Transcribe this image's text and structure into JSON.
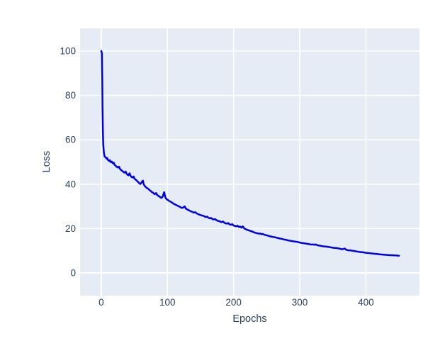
{
  "colors": {
    "page_background": "#ffffff",
    "plot_background": "#e5ecf6",
    "grid": "#ffffff",
    "text": "#2a3f5f",
    "line": "#0000e6"
  },
  "chart_data": {
    "type": "line",
    "title": "",
    "xlabel": "Epochs",
    "ylabel": "Loss",
    "xlim": [
      -32,
      481
    ],
    "ylim": [
      -10.2,
      110.2
    ],
    "xticks": [
      0,
      100,
      200,
      300,
      400
    ],
    "yticks": [
      0,
      20,
      40,
      60,
      80,
      100
    ],
    "grid": true,
    "legend": false,
    "series": [
      {
        "name": "loss",
        "color": "#0000e6",
        "points": [
          [
            0,
            100
          ],
          [
            1,
            99
          ],
          [
            1.5,
            88
          ],
          [
            2,
            74
          ],
          [
            2.5,
            64
          ],
          [
            3,
            58
          ],
          [
            4,
            54.3
          ],
          [
            5,
            52.6
          ],
          [
            6,
            52.2
          ],
          [
            7,
            52.0
          ],
          [
            8,
            51.5
          ],
          [
            9,
            51.8
          ],
          [
            10,
            51.0
          ],
          [
            11,
            50.7
          ],
          [
            12,
            50.4
          ],
          [
            13,
            50.8
          ],
          [
            14,
            50.1
          ],
          [
            15,
            49.9
          ],
          [
            16,
            50.2
          ],
          [
            17,
            49.6
          ],
          [
            18,
            49.4
          ],
          [
            19,
            49.7
          ],
          [
            20,
            48.8
          ],
          [
            21,
            48.5
          ],
          [
            22,
            48.2
          ],
          [
            23,
            48.0
          ],
          [
            24,
            47.7
          ],
          [
            25,
            47.5
          ],
          [
            26,
            47.8
          ],
          [
            27,
            47.9
          ],
          [
            28,
            47.0
          ],
          [
            29,
            46.7
          ],
          [
            30,
            46.4
          ],
          [
            31,
            46.1
          ],
          [
            32,
            45.9
          ],
          [
            33,
            45.7
          ],
          [
            34,
            45.4
          ],
          [
            35,
            45.2
          ],
          [
            36,
            45.5
          ],
          [
            37,
            45.7
          ],
          [
            38,
            44.8
          ],
          [
            39,
            44.5
          ],
          [
            40,
            44.2
          ],
          [
            41,
            44.0
          ],
          [
            42,
            44.6
          ],
          [
            43,
            44.9
          ],
          [
            44,
            43.9
          ],
          [
            45,
            43.5
          ],
          [
            46,
            43.2
          ],
          [
            47,
            43.0
          ],
          [
            48,
            43.3
          ],
          [
            49,
            43.5
          ],
          [
            50,
            42.6
          ],
          [
            51,
            42.3
          ],
          [
            52,
            42.0
          ],
          [
            53,
            41.8
          ],
          [
            54,
            41.5
          ],
          [
            55,
            41.2
          ],
          [
            56,
            40.9
          ],
          [
            57,
            40.6
          ],
          [
            58,
            40.3
          ],
          [
            59,
            40.1
          ],
          [
            60,
            40.4
          ],
          [
            61,
            40.8
          ],
          [
            62,
            41.3
          ],
          [
            63,
            41.6
          ],
          [
            64,
            40.2
          ],
          [
            65,
            39.5
          ],
          [
            66,
            39.1
          ],
          [
            67,
            38.8
          ],
          [
            68,
            38.5
          ],
          [
            69,
            38.3
          ],
          [
            70,
            38.1
          ],
          [
            71,
            37.9
          ],
          [
            72,
            37.6
          ],
          [
            73,
            37.4
          ],
          [
            74,
            37.1
          ],
          [
            75,
            36.9
          ],
          [
            76,
            36.6
          ],
          [
            77,
            36.4
          ],
          [
            78,
            36.2
          ],
          [
            79,
            36.0
          ],
          [
            80,
            35.7
          ],
          [
            81,
            35.5
          ],
          [
            82,
            35.8
          ],
          [
            83,
            36.0
          ],
          [
            84,
            35.3
          ],
          [
            85,
            35.1
          ],
          [
            86,
            34.8
          ],
          [
            87,
            34.6
          ],
          [
            88,
            34.4
          ],
          [
            89,
            34.2
          ],
          [
            90,
            34.0
          ],
          [
            91,
            33.8
          ],
          [
            92,
            34.1
          ],
          [
            93,
            34.5
          ],
          [
            94,
            35.4
          ],
          [
            95,
            36.4
          ],
          [
            96,
            35.2
          ],
          [
            97,
            34.0
          ],
          [
            98,
            33.5
          ],
          [
            99,
            33.2
          ],
          [
            100,
            33.0
          ],
          [
            102,
            32.6
          ],
          [
            104,
            32.2
          ],
          [
            106,
            31.9
          ],
          [
            108,
            31.5
          ],
          [
            110,
            31.1
          ],
          [
            112,
            30.8
          ],
          [
            114,
            30.5
          ],
          [
            116,
            30.2
          ],
          [
            118,
            29.9
          ],
          [
            120,
            29.6
          ],
          [
            122,
            29.3
          ],
          [
            124,
            29.5
          ],
          [
            126,
            30.0
          ],
          [
            128,
            29.0
          ],
          [
            130,
            28.6
          ],
          [
            132,
            28.3
          ],
          [
            134,
            28.0
          ],
          [
            136,
            27.7
          ],
          [
            138,
            27.5
          ],
          [
            140,
            27.2
          ],
          [
            142,
            27.4
          ],
          [
            144,
            26.9
          ],
          [
            146,
            26.6
          ],
          [
            148,
            26.3
          ],
          [
            150,
            26.1
          ],
          [
            152,
            25.9
          ],
          [
            154,
            25.8
          ],
          [
            156,
            25.5
          ],
          [
            158,
            25.2
          ],
          [
            160,
            25.4
          ],
          [
            162,
            24.9
          ],
          [
            164,
            24.6
          ],
          [
            166,
            24.8
          ],
          [
            168,
            24.3
          ],
          [
            170,
            24.1
          ],
          [
            172,
            24.3
          ],
          [
            174,
            23.8
          ],
          [
            176,
            23.5
          ],
          [
            178,
            23.4
          ],
          [
            180,
            23.1
          ],
          [
            182,
            22.9
          ],
          [
            184,
            23.2
          ],
          [
            186,
            22.6
          ],
          [
            188,
            22.4
          ],
          [
            190,
            22.2
          ],
          [
            192,
            22.5
          ],
          [
            194,
            21.9
          ],
          [
            196,
            21.7
          ],
          [
            198,
            22.0
          ],
          [
            200,
            21.4
          ],
          [
            202,
            21.2
          ],
          [
            204,
            21.0
          ],
          [
            206,
            21.3
          ],
          [
            208,
            20.7
          ],
          [
            210,
            20.9
          ],
          [
            212,
            20.4
          ],
          [
            214,
            21.0
          ],
          [
            216,
            20.1
          ],
          [
            218,
            19.8
          ],
          [
            220,
            19.5
          ],
          [
            222,
            19.3
          ],
          [
            224,
            19.1
          ],
          [
            226,
            18.9
          ],
          [
            228,
            18.7
          ],
          [
            230,
            18.4
          ],
          [
            232,
            18.2
          ],
          [
            234,
            18.0
          ],
          [
            236,
            17.9
          ],
          [
            238,
            17.7
          ],
          [
            240,
            17.8
          ],
          [
            242,
            17.5
          ],
          [
            244,
            17.6
          ],
          [
            246,
            17.3
          ],
          [
            248,
            17.1
          ],
          [
            250,
            17.0
          ],
          [
            252,
            16.8
          ],
          [
            254,
            16.6
          ],
          [
            256,
            16.5
          ],
          [
            258,
            16.3
          ],
          [
            260,
            16.2
          ],
          [
            262,
            16.1
          ],
          [
            264,
            16.0
          ],
          [
            266,
            15.8
          ],
          [
            268,
            15.7
          ],
          [
            270,
            15.5
          ],
          [
            272,
            15.4
          ],
          [
            274,
            15.3
          ],
          [
            276,
            15.1
          ],
          [
            278,
            15.0
          ],
          [
            280,
            14.9
          ],
          [
            282,
            14.7
          ],
          [
            284,
            14.6
          ],
          [
            286,
            14.5
          ],
          [
            288,
            14.4
          ],
          [
            290,
            14.3
          ],
          [
            292,
            14.2
          ],
          [
            294,
            14.1
          ],
          [
            296,
            14.0
          ],
          [
            298,
            13.9
          ],
          [
            300,
            13.7
          ],
          [
            302,
            13.6
          ],
          [
            304,
            13.5
          ],
          [
            306,
            13.4
          ],
          [
            308,
            13.3
          ],
          [
            310,
            13.2
          ],
          [
            312,
            13.1
          ],
          [
            314,
            13.0
          ],
          [
            316,
            12.9
          ],
          [
            318,
            12.8
          ],
          [
            320,
            12.9
          ],
          [
            322,
            12.7
          ],
          [
            324,
            12.9
          ],
          [
            326,
            12.6
          ],
          [
            328,
            12.4
          ],
          [
            330,
            12.3
          ],
          [
            332,
            12.2
          ],
          [
            334,
            12.1
          ],
          [
            336,
            12.0
          ],
          [
            338,
            11.9
          ],
          [
            340,
            11.9
          ],
          [
            342,
            11.8
          ],
          [
            344,
            11.7
          ],
          [
            346,
            11.6
          ],
          [
            348,
            11.5
          ],
          [
            350,
            11.4
          ],
          [
            352,
            11.3
          ],
          [
            354,
            11.3
          ],
          [
            356,
            11.2
          ],
          [
            358,
            11.1
          ],
          [
            360,
            11.0
          ],
          [
            362,
            10.8
          ],
          [
            364,
            10.7
          ],
          [
            366,
            10.8
          ],
          [
            368,
            11.0
          ],
          [
            370,
            10.5
          ],
          [
            372,
            10.3
          ],
          [
            374,
            10.2
          ],
          [
            376,
            10.2
          ],
          [
            378,
            10.1
          ],
          [
            380,
            10.0
          ],
          [
            382,
            9.9
          ],
          [
            384,
            9.8
          ],
          [
            386,
            9.7
          ],
          [
            388,
            9.6
          ],
          [
            390,
            9.5
          ],
          [
            392,
            9.4
          ],
          [
            394,
            9.4
          ],
          [
            396,
            9.3
          ],
          [
            398,
            9.2
          ],
          [
            400,
            9.1
          ],
          [
            402,
            9.0
          ],
          [
            404,
            9.0
          ],
          [
            406,
            8.9
          ],
          [
            408,
            8.8
          ],
          [
            410,
            8.8
          ],
          [
            412,
            8.7
          ],
          [
            414,
            8.6
          ],
          [
            416,
            8.6
          ],
          [
            418,
            8.5
          ],
          [
            420,
            8.4
          ],
          [
            422,
            8.4
          ],
          [
            424,
            8.3
          ],
          [
            426,
            8.3
          ],
          [
            428,
            8.2
          ],
          [
            430,
            8.2
          ],
          [
            432,
            8.1
          ],
          [
            434,
            8.1
          ],
          [
            436,
            8.0
          ],
          [
            438,
            8.0
          ],
          [
            440,
            8.0
          ],
          [
            442,
            7.9
          ],
          [
            444,
            7.9
          ],
          [
            446,
            7.9
          ],
          [
            448,
            7.8
          ],
          [
            450,
            7.8
          ]
        ]
      }
    ]
  }
}
